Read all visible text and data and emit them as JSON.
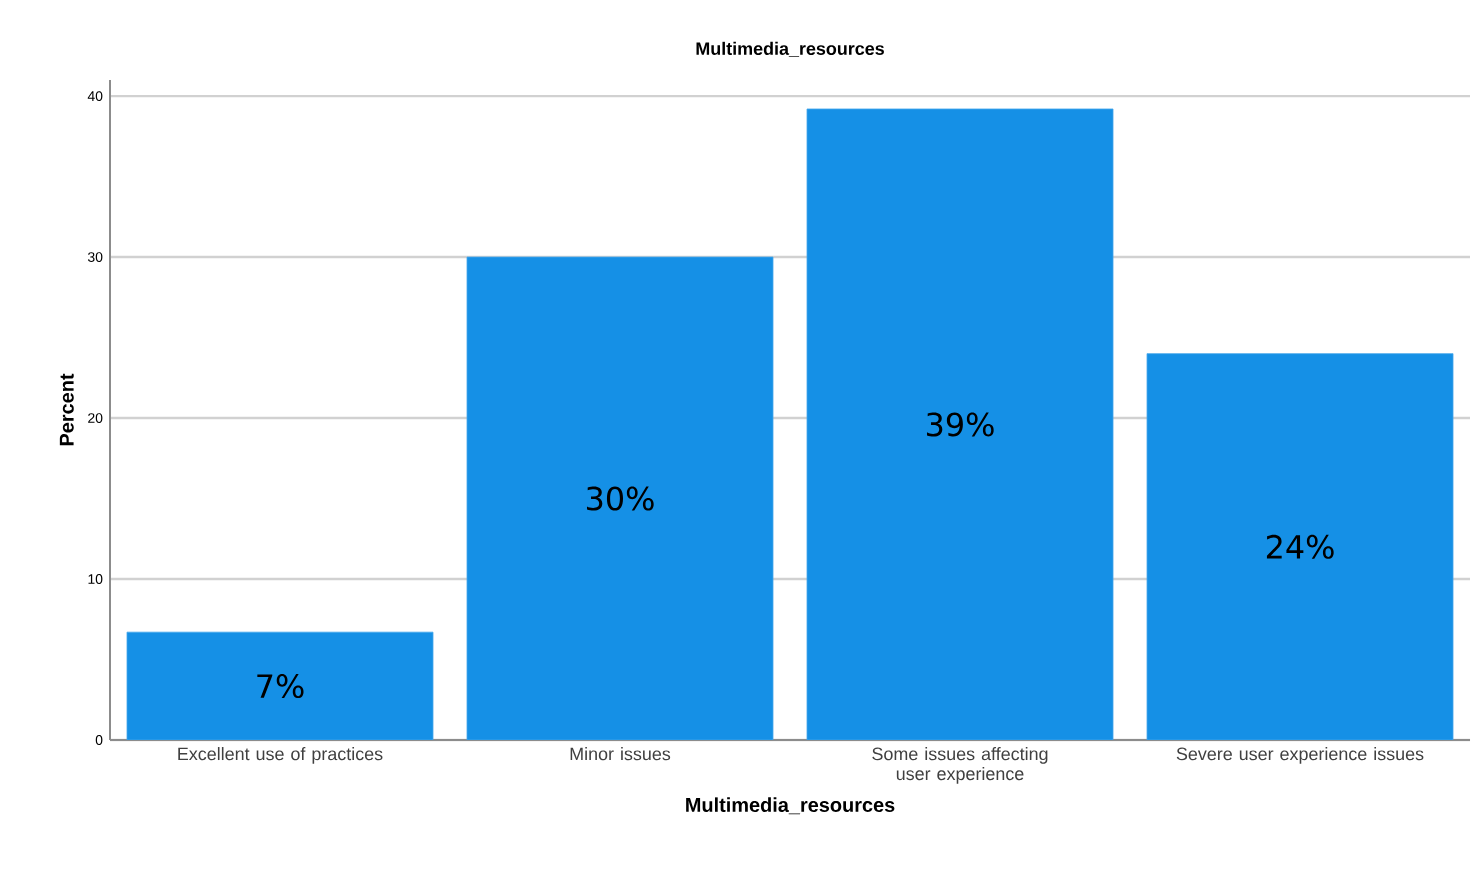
{
  "chart_data": {
    "type": "bar",
    "title": "Multimedia_resources",
    "xlabel": "Multimedia_resources",
    "ylabel": "Percent",
    "categories": [
      "Excellent use of practices",
      "Minor issues",
      "Some issues affecting user experience",
      "Severe user experience issues"
    ],
    "values": [
      6.7,
      30.0,
      39.2,
      24.0
    ],
    "value_labels": [
      "7%",
      "30%",
      "39%",
      "24%"
    ],
    "color": "#1590e6",
    "ylim": [
      0,
      41
    ],
    "yticks": [
      0,
      10,
      20,
      30,
      40
    ],
    "grid": "y"
  }
}
